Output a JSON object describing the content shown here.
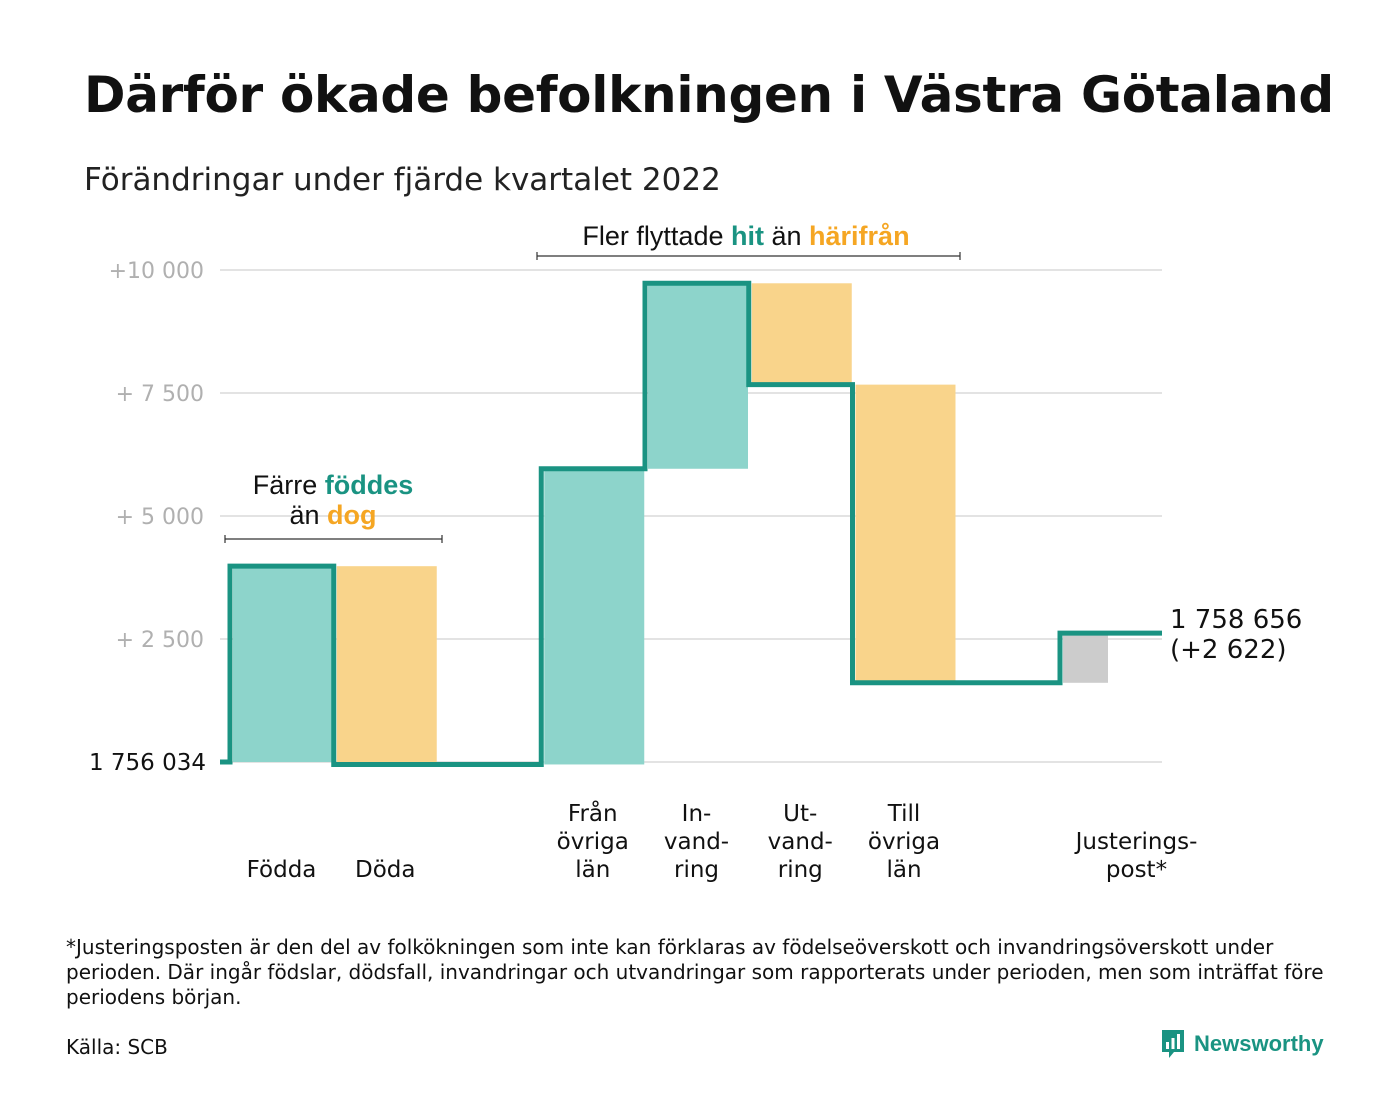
{
  "title": "Därför ökade befolkningen i Västra Götaland",
  "subtitle": "Förändringar under fjärde kvartalet 2022",
  "chart_data": {
    "type": "waterfall",
    "start_value": 1756034,
    "start_label": "1 756 034",
    "end_value_label": "1 758 656",
    "end_change_label": "(+2 622)",
    "ylim": [
      0,
      10000
    ],
    "yticks": [
      {
        "value": 2500,
        "label": "+ 2 500"
      },
      {
        "value": 5000,
        "label": "+ 5 000"
      },
      {
        "value": 7500,
        "label": "+ 7 500"
      },
      {
        "value": 10000,
        "label": "+10 000"
      }
    ],
    "steps": [
      {
        "label": [
          "Födda"
        ],
        "delta": 3980,
        "kind": "in"
      },
      {
        "label": [
          "Döda"
        ],
        "delta": -4030,
        "kind": "out"
      },
      {
        "label": [
          "Från",
          "övriga",
          "län"
        ],
        "delta": 6010,
        "kind": "in"
      },
      {
        "label": [
          "In-",
          "vand-",
          "ring"
        ],
        "delta": 3770,
        "kind": "in"
      },
      {
        "label": [
          "Ut-",
          "vand-",
          "ring"
        ],
        "delta": -2060,
        "kind": "out"
      },
      {
        "label": [
          "Till",
          "övriga",
          "län"
        ],
        "delta": -6060,
        "kind": "out"
      },
      {
        "label": [
          "Justerings-",
          "post*"
        ],
        "delta": 1010,
        "kind": "adjust"
      }
    ],
    "annotations": [
      {
        "lines": [
          [
            {
              "t": "Färre ",
              "c": "plain"
            },
            {
              "t": "föddes",
              "c": "in"
            }
          ],
          [
            {
              "t": "än ",
              "c": "plain"
            },
            {
              "t": "dog",
              "c": "out"
            }
          ]
        ]
      },
      {
        "lines": [
          [
            {
              "t": "Fler flyttade ",
              "c": "plain"
            },
            {
              "t": "hit",
              "c": "in"
            },
            {
              "t": " än ",
              "c": "plain"
            },
            {
              "t": "härifrån",
              "c": "out"
            }
          ]
        ]
      }
    ],
    "colors": {
      "in": "#8dd4cb",
      "out": "#f9d48b",
      "adjust": "#cccccc",
      "line": "#1a9382",
      "in_text": "#1a9382",
      "out_text": "#f5a623",
      "grid": "#e3e3e3",
      "tick_text": "#b0b0b0"
    }
  },
  "footnote": "*Justeringsposten är den del av folkökningen som inte kan förklaras av födelseöverskott och invandringsöverskott under perioden. Där ingår födslar, dödsfall, invandringar och utvandringar som rapporterats under perioden, men som inträffat före periodens början.",
  "source": "Källa: SCB",
  "brand": {
    "name": "Newsworthy",
    "icon": "newsworthy-logo-icon",
    "color": "#1a9382"
  }
}
